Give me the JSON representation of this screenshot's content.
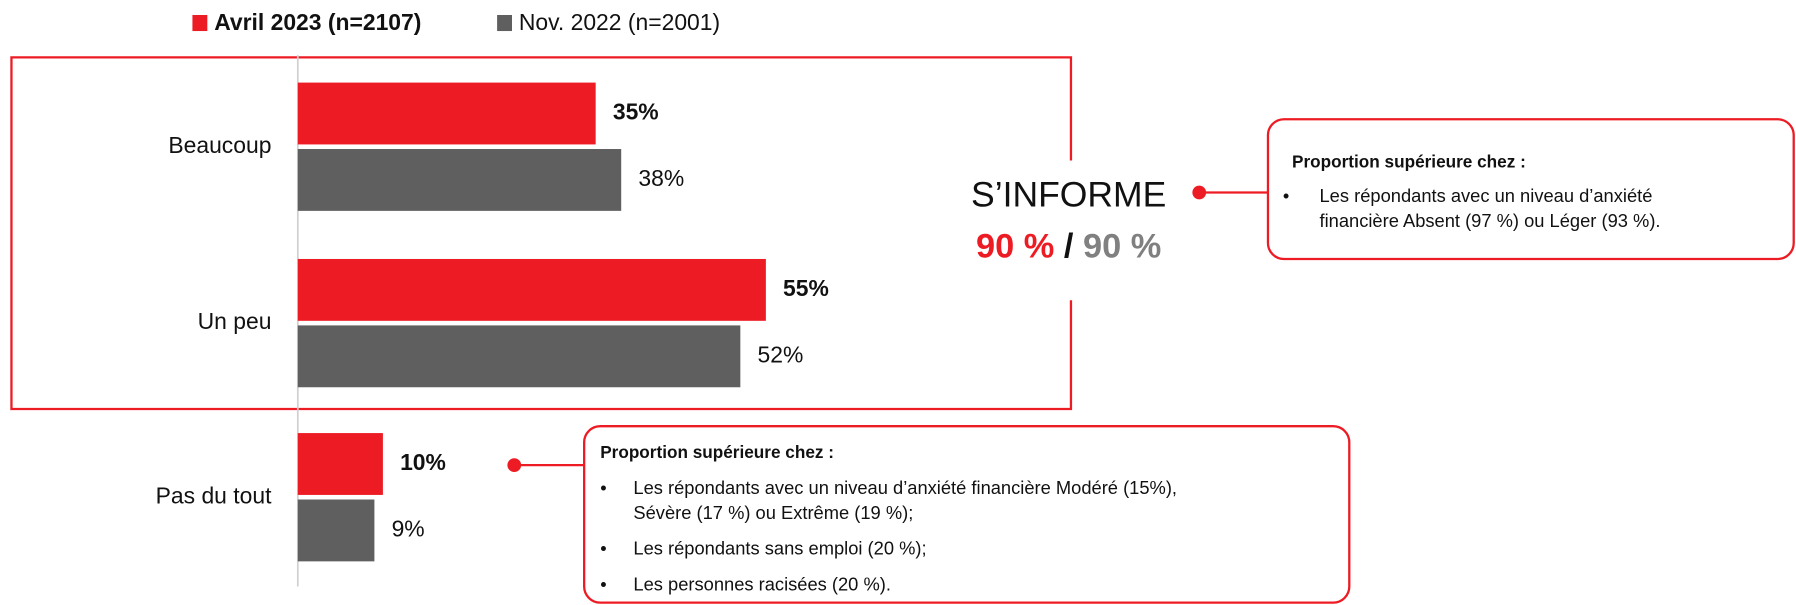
{
  "chart_data": {
    "type": "hbar",
    "categories": [
      "Beaucoup",
      "Un peu",
      "Pas du tout"
    ],
    "series": [
      {
        "name": "Avril 2023 (n=2107)",
        "color": "#ed1c24",
        "values": [
          35,
          55,
          10
        ],
        "value_labels": [
          "35%",
          "55%",
          "10%"
        ]
      },
      {
        "name": "Nov. 2022 (n=2001)",
        "color": "#5f5f5f",
        "values": [
          38,
          52,
          9
        ],
        "value_labels": [
          "38%",
          "52%",
          "9%"
        ]
      }
    ],
    "xlim": [
      0,
      100
    ],
    "annotations": {
      "group_label": "S’INFORME",
      "score_a": "90 %",
      "separator": "/",
      "score_b": "90 %",
      "callouts": [
        {
          "title": "Proportion supérieure chez :",
          "items": [
            [
              "Les répondants avec un niveau d’anxiété",
              "financière Absent (97 %) ou Léger (93 %)."
            ]
          ]
        },
        {
          "title": "Proportion supérieure chez :",
          "items": [
            [
              "Les répondants avec un niveau d’anxiété financière Modéré (15%),",
              "Sévère (17 %) ou Extrême (19 %);"
            ],
            [
              "Les répondants sans emploi (20 %);"
            ],
            [
              "Les personnes racisées (20 %)."
            ]
          ]
        }
      ]
    }
  }
}
